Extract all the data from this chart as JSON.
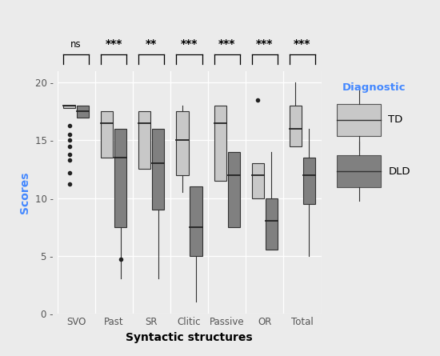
{
  "categories": [
    "SVO",
    "Past",
    "SR",
    "Clitic",
    "Passive",
    "OR",
    "Total"
  ],
  "significance": [
    "ns",
    "***",
    "**",
    "***",
    "***",
    "***",
    "***"
  ],
  "td_boxes": {
    "SVO": {
      "q1": 17.8,
      "median": 18.0,
      "q3": 18.0,
      "whisker_low": 17.8,
      "whisker_high": 18.0,
      "outliers": [
        16.3,
        15.5,
        15.0,
        14.5,
        13.8,
        13.3,
        12.2,
        11.2
      ]
    },
    "Past": {
      "q1": 13.5,
      "median": 16.5,
      "q3": 17.5,
      "whisker_low": 13.5,
      "whisker_high": 17.5,
      "outliers": []
    },
    "SR": {
      "q1": 12.5,
      "median": 16.5,
      "q3": 17.5,
      "whisker_low": 12.5,
      "whisker_high": 17.5,
      "outliers": []
    },
    "Clitic": {
      "q1": 12.0,
      "median": 15.0,
      "q3": 17.5,
      "whisker_low": 10.5,
      "whisker_high": 18.0,
      "outliers": []
    },
    "Passive": {
      "q1": 11.5,
      "median": 16.5,
      "q3": 18.0,
      "whisker_low": 11.5,
      "whisker_high": 18.0,
      "outliers": []
    },
    "OR": {
      "q1": 10.0,
      "median": 12.0,
      "q3": 13.0,
      "whisker_low": 10.0,
      "whisker_high": 13.0,
      "outliers": [
        18.5
      ]
    },
    "Total": {
      "q1": 14.5,
      "median": 16.0,
      "q3": 18.0,
      "whisker_low": 14.5,
      "whisker_high": 20.0,
      "outliers": []
    }
  },
  "dld_boxes": {
    "SVO": {
      "q1": 17.0,
      "median": 17.5,
      "q3": 18.0,
      "whisker_low": 17.0,
      "whisker_high": 18.0,
      "outliers": []
    },
    "Past": {
      "q1": 7.5,
      "median": 13.5,
      "q3": 16.0,
      "whisker_low": 3.0,
      "whisker_high": 16.0,
      "outliers": [
        4.7
      ]
    },
    "SR": {
      "q1": 9.0,
      "median": 13.0,
      "q3": 16.0,
      "whisker_low": 3.0,
      "whisker_high": 16.0,
      "outliers": []
    },
    "Clitic": {
      "q1": 5.0,
      "median": 7.5,
      "q3": 11.0,
      "whisker_low": 1.0,
      "whisker_high": 11.0,
      "outliers": []
    },
    "Passive": {
      "q1": 7.5,
      "median": 12.0,
      "q3": 14.0,
      "whisker_low": 7.5,
      "whisker_high": 14.0,
      "outliers": []
    },
    "OR": {
      "q1": 5.5,
      "median": 8.0,
      "q3": 10.0,
      "whisker_low": 5.5,
      "whisker_high": 14.0,
      "outliers": []
    },
    "Total": {
      "q1": 9.5,
      "median": 12.0,
      "q3": 13.5,
      "whisker_low": 5.0,
      "whisker_high": 16.0,
      "outliers": []
    }
  },
  "td_color": "#c8c8c8",
  "dld_color": "#808080",
  "bg_color": "#ebebeb",
  "panel_bg": "#ebebeb",
  "xlabel": "Syntactic structures",
  "ylabel": "Scores",
  "ylim": [
    0,
    21
  ],
  "yticks": [
    0,
    5,
    10,
    15,
    20
  ],
  "box_width": 0.32,
  "legend_title": "Diagnostic",
  "legend_labels": [
    "TD",
    "DLD"
  ]
}
